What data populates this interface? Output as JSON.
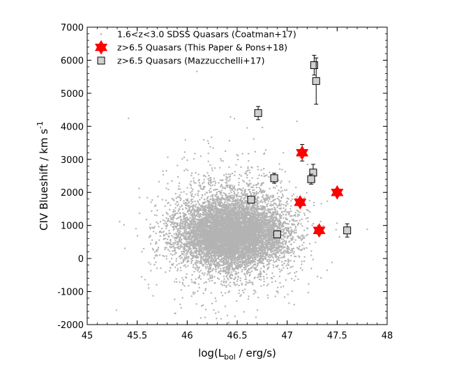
{
  "chart_data": {
    "type": "scatter",
    "xlabel": "log(L_bol / erg/s)",
    "ylabel": "CIV Blueshift / km s^-1",
    "xlim": [
      45,
      48
    ],
    "ylim": [
      -2000,
      7000
    ],
    "xticks": [
      45,
      45.5,
      46,
      46.5,
      47,
      47.5,
      48
    ],
    "yticks": [
      -2000,
      -1000,
      0,
      1000,
      2000,
      3000,
      4000,
      5000,
      6000,
      7000
    ],
    "grid": false,
    "legend_position": "top-left",
    "colors": {
      "sdss": "#b3b3b3",
      "this_paper": "#ff0000",
      "mazzucchelli": "#d0d0d0"
    },
    "series": [
      {
        "name": "1.6<z<3.0 SDSS Quasars (Coatman+17)",
        "marker": "dot",
        "distribution": {
          "center_x": 46.45,
          "center_y": 650,
          "extent_x": [
            45.1,
            47.95
          ],
          "extent_y": [
            -1950,
            6200
          ]
        }
      },
      {
        "name": "z>6.5 Quasars (This Paper & Pons+18)",
        "marker": "star",
        "points": [
          {
            "x": 47.15,
            "y": 3200,
            "yerr": 250
          },
          {
            "x": 47.13,
            "y": 1700,
            "yerr": 100
          },
          {
            "x": 47.5,
            "y": 2000,
            "yerr": 100
          },
          {
            "x": 47.32,
            "y": 850,
            "yerr": 100
          }
        ]
      },
      {
        "name": "z>6.5 Quasars (Mazzucchelli+17)",
        "marker": "square",
        "points": [
          {
            "x": 46.71,
            "y": 4400,
            "yerr": 200
          },
          {
            "x": 46.87,
            "y": 2430,
            "yerr": 150
          },
          {
            "x": 46.64,
            "y": 1780,
            "yerr": 100
          },
          {
            "x": 46.9,
            "y": 730,
            "yerr": 80
          },
          {
            "x": 47.27,
            "y": 5850,
            "yerr": 300
          },
          {
            "x": 47.29,
            "y": 5370,
            "yerr": 700
          },
          {
            "x": 47.26,
            "y": 2600,
            "yerr": 250
          },
          {
            "x": 47.24,
            "y": 2400,
            "yerr": 150
          },
          {
            "x": 47.6,
            "y": 850,
            "yerr": 200
          }
        ]
      }
    ]
  }
}
